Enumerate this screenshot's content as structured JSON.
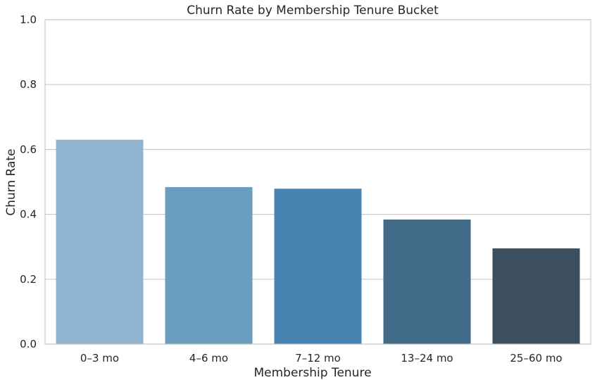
{
  "chart_data": {
    "type": "bar",
    "title": "Churn Rate by Membership Tenure Bucket",
    "xlabel": "Membership Tenure",
    "ylabel": "Churn Rate",
    "categories": [
      "0–3 mo",
      "4–6 mo",
      "7–12 mo",
      "13–24 mo",
      "25–60 mo"
    ],
    "values": [
      0.63,
      0.484,
      0.479,
      0.384,
      0.295
    ],
    "ylim": [
      0,
      1.0
    ],
    "yticks": [
      "0.0",
      "0.2",
      "0.4",
      "0.6",
      "0.8",
      "1.0"
    ],
    "bar_colors": [
      "#8fb4d1",
      "#6a9dbf",
      "#4884b0",
      "#426b8a",
      "#3c4f5e"
    ],
    "grid": "horizontal",
    "legend": "none"
  }
}
